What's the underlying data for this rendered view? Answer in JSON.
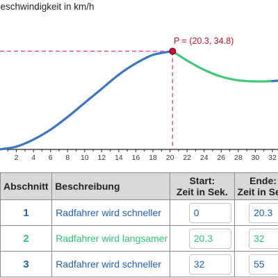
{
  "graph": {
    "y_axis_title": "Geschwindigkeit in km/h",
    "point_label": "P = (20.3, 34.8)",
    "x_ticks": [
      "2",
      "4",
      "6",
      "8",
      "10",
      "12",
      "14",
      "16",
      "18",
      "20",
      "22",
      "24",
      "26",
      "28",
      "30",
      "32"
    ],
    "colors": {
      "accelerate": "#3a75c4",
      "decelerate": "#3ec97a",
      "point": "#d0103a",
      "guide": "#e0305a",
      "axis": "#222222"
    }
  },
  "chart_data": {
    "type": "line",
    "title": "",
    "xlabel": "",
    "ylabel": "Geschwindigkeit in km/h",
    "x_ticks": [
      2,
      4,
      6,
      8,
      10,
      12,
      14,
      16,
      18,
      20,
      22,
      24,
      26,
      28,
      30,
      32
    ],
    "series": [
      {
        "x": [
          0,
          2,
          4,
          6,
          8,
          10,
          12,
          14,
          16,
          18,
          20.3
        ],
        "y": [
          0,
          1,
          3.5,
          7,
          11.5,
          16.5,
          21.5,
          26.5,
          30.5,
          33.5,
          34.8
        ]
      },
      {
        "x": [
          20.3,
          22,
          24,
          26,
          28,
          30,
          32
        ],
        "y": [
          34.8,
          31.5,
          28.2,
          25.8,
          24.5,
          24.1,
          24.2
        ]
      }
    ],
    "point": {
      "label": "P",
      "x": 20.3,
      "y": 34.8
    },
    "grid": false
  },
  "table": {
    "headers": {
      "abschnitt": "Abschnitt",
      "beschreibung": "Beschreibung",
      "start_line1": "Start:",
      "start_line2": "Zeit in Sek.",
      "ende_line1": "Ende:",
      "ende_line2": "Zeit in Sek."
    },
    "rows": [
      {
        "nr": "1",
        "desc": "Radfahrer wird schneller",
        "start": "0",
        "end": "20.3",
        "color": "blue"
      },
      {
        "nr": "2",
        "desc": "Radfahrer wird langsamer",
        "start": "20.3",
        "end": "32",
        "color": "green"
      },
      {
        "nr": "3",
        "desc": "Radfahrer wird schneller",
        "start": "32",
        "end": "55",
        "color": "blue"
      }
    ]
  }
}
